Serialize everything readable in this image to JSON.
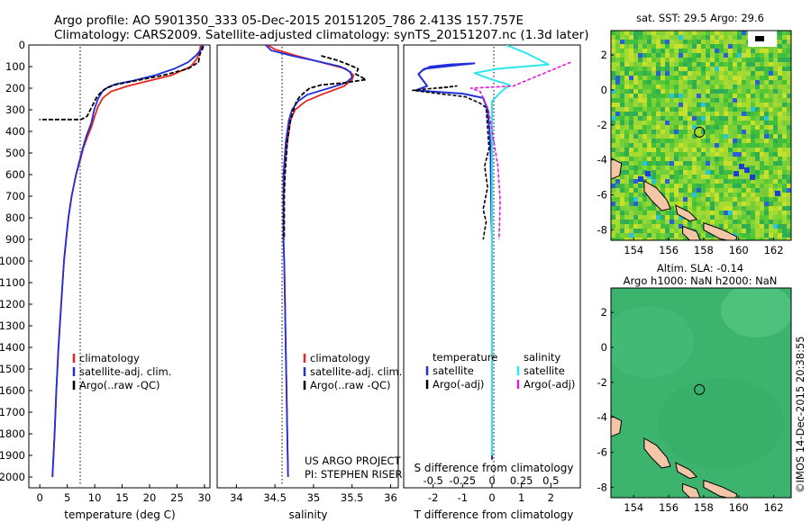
{
  "header": {
    "line1": "Argo profile: AO 5901350_333 05-Dec-2015 20151205_786 2.413S 157.757E",
    "line2": "Climatology: CARS2009. Satellite-adjusted climatology: synTS_20151207.nc (1.3d later)"
  },
  "credits": {
    "line1": "US ARGO PROJECT",
    "line2": "PI: STEPHEN RISER"
  },
  "stamp": "©IMOS 14-Dec-2015 20:38:55",
  "colors": {
    "climatology": "#e8251e",
    "satellite": "#1f2fdc",
    "argo": "#000000",
    "sal_satellite": "#2ee6f0",
    "sal_argo": "#e21ad6"
  },
  "depth_axis": {
    "ylim": [
      0,
      2050
    ],
    "ticks": [
      0,
      100,
      200,
      300,
      400,
      500,
      600,
      700,
      800,
      900,
      1000,
      1100,
      1200,
      1300,
      1400,
      1500,
      1600,
      1700,
      1800,
      1900,
      2000
    ],
    "tick_labels": [
      "0",
      "100",
      "200",
      "300",
      "400",
      "500",
      "600",
      "700",
      "800",
      "900",
      "1000",
      "1100",
      "1200",
      "1300",
      "1400",
      "1500",
      "1600",
      "1700",
      "1800",
      "1900",
      "2000"
    ]
  },
  "temp_panel": {
    "xlabel": "temperature (deg C)",
    "xlim": [
      -2,
      31
    ],
    "xticks": [
      0,
      5,
      10,
      15,
      20,
      25,
      30
    ],
    "xtick_labels": [
      "0",
      "5",
      "10",
      "15",
      "20",
      "25",
      "30"
    ],
    "legend": [
      "climatology",
      "satellite-adj. clim.",
      "Argo(..raw -QC)"
    ]
  },
  "sal_panel": {
    "xlabel": "salinity",
    "xlim": [
      33.75,
      36.1
    ],
    "xticks": [
      34,
      34.5,
      35,
      35.5,
      36
    ],
    "xtick_labels": [
      "34",
      "34.5",
      "35",
      "35.5",
      "36"
    ],
    "legend": [
      "climatology",
      "satellite-adj. clim.",
      "Argo(..raw -QC)"
    ]
  },
  "diff_panel": {
    "xlabel_bottom": "T difference from climatology",
    "xlabel_top": "S difference from climatology",
    "t_xlim": [
      -3,
      3
    ],
    "t_ticks": [
      -2,
      -1,
      0,
      1,
      2
    ],
    "t_tick_labels": [
      "-2",
      "-1",
      "0",
      "1",
      "2"
    ],
    "s_ticks": [
      -0.5,
      -0.25,
      0,
      0.25,
      0.5
    ],
    "s_tick_labels": [
      "-0.5",
      "-0.25",
      "0",
      "0.25",
      "0.5"
    ],
    "legend_temp_title": "temperature",
    "legend_sal_title": "salinity",
    "legend_temp": [
      "satellite",
      "Argo(-adj)"
    ],
    "legend_sal": [
      "satellite",
      "Argo(-adj)"
    ]
  },
  "sst_map": {
    "title": "sat. SST: 29.5 Argo: 29.6",
    "xticks": [
      154,
      156,
      158,
      160,
      162
    ],
    "yticks": [
      2,
      0,
      -2,
      -4,
      -6,
      -8
    ],
    "xtick_labels": [
      "154",
      "156",
      "158",
      "160",
      "162"
    ],
    "ytick_labels": [
      "2",
      "0",
      "-2",
      "-4",
      "-6",
      "-8"
    ],
    "xlim": [
      152.7,
      163.0
    ],
    "ylim": [
      -8.6,
      3.4
    ],
    "marker": [
      157.757,
      -2.413
    ]
  },
  "sla_map": {
    "title1": "Altim. SLA: -0.14",
    "title2": "Argo h1000: NaN h2000: NaN",
    "xticks": [
      154,
      156,
      158,
      160,
      162
    ],
    "yticks": [
      2,
      0,
      -2,
      -4,
      -6,
      -8
    ],
    "xtick_labels": [
      "154",
      "156",
      "158",
      "160",
      "162"
    ],
    "ytick_labels": [
      "2",
      "0",
      "-2",
      "-4",
      "-6",
      "-8"
    ],
    "xlim": [
      152.7,
      163.0
    ],
    "ylim": [
      -8.6,
      3.4
    ],
    "marker": [
      157.757,
      -2.413
    ]
  },
  "chart_data": [
    {
      "type": "line",
      "title": "",
      "xlabel": "temperature (deg C)",
      "ylabel": "",
      "xlim": [
        -2,
        31
      ],
      "ylim": [
        0,
        2050
      ],
      "series": [
        {
          "name": "climatology",
          "points": [
            [
              29.3,
              0
            ],
            [
              29.2,
              20
            ],
            [
              28.7,
              60
            ],
            [
              27.5,
              100
            ],
            [
              24,
              140
            ],
            [
              20,
              165
            ],
            [
              16,
              190
            ],
            [
              13,
              215
            ],
            [
              11.5,
              245
            ],
            [
              10.6,
              285
            ],
            [
              10,
              330
            ],
            [
              9.4,
              380
            ],
            [
              8.6,
              430
            ],
            [
              7.9,
              480
            ],
            [
              7.3,
              540
            ],
            [
              6.6,
              600
            ],
            [
              5.8,
              700
            ],
            [
              5.2,
              800
            ],
            [
              4.8,
              900
            ],
            [
              4.4,
              1000
            ],
            [
              3.9,
              1200
            ],
            [
              3.4,
              1400
            ],
            [
              3.0,
              1600
            ],
            [
              2.7,
              1800
            ],
            [
              2.3,
              2000
            ]
          ]
        },
        {
          "name": "satellite-adj. clim.",
          "points": [
            [
              29.6,
              0
            ],
            [
              29.4,
              20
            ],
            [
              28.4,
              50
            ],
            [
              27,
              80
            ],
            [
              24.5,
              110
            ],
            [
              21,
              140
            ],
            [
              17,
              165
            ],
            [
              14,
              180
            ],
            [
              12.4,
              195
            ],
            [
              11.4,
              215
            ],
            [
              10.6,
              250
            ],
            [
              9.9,
              300
            ],
            [
              9.4,
              360
            ],
            [
              8.5,
              420
            ],
            [
              7.8,
              480
            ],
            [
              7.2,
              540
            ],
            [
              6.6,
              600
            ],
            [
              5.8,
              700
            ],
            [
              5.2,
              800
            ],
            [
              4.8,
              900
            ],
            [
              4.4,
              1000
            ],
            [
              3.9,
              1200
            ],
            [
              3.4,
              1400
            ],
            [
              3.0,
              1600
            ],
            [
              2.7,
              1800
            ],
            [
              2.3,
              2000
            ]
          ]
        },
        {
          "name": "Argo(..raw -QC)",
          "points": [
            [
              29.8,
              5
            ],
            [
              29.6,
              20
            ],
            [
              29.2,
              40
            ],
            [
              28.9,
              80
            ],
            [
              27,
              110
            ],
            [
              22.5,
              140
            ],
            [
              17.5,
              165
            ],
            [
              13.5,
              185
            ],
            [
              11.8,
              205
            ],
            [
              10.9,
              225
            ],
            [
              10.3,
              245
            ],
            [
              9.8,
              270
            ],
            [
              9.2,
              300
            ],
            [
              8.6,
              330
            ],
            [
              7.5,
              345
            ],
            [
              -0.1,
              345
            ]
          ]
        }
      ]
    },
    {
      "type": "line",
      "title": "",
      "xlabel": "salinity",
      "ylabel": "",
      "xlim": [
        33.75,
        36.1
      ],
      "ylim": [
        0,
        2050
      ],
      "series": [
        {
          "name": "climatology",
          "points": [
            [
              34.4,
              0
            ],
            [
              34.5,
              20
            ],
            [
              34.78,
              50
            ],
            [
              35.1,
              80
            ],
            [
              35.42,
              110
            ],
            [
              35.52,
              140
            ],
            [
              35.5,
              160
            ],
            [
              35.4,
              190
            ],
            [
              35.1,
              230
            ],
            [
              34.9,
              260
            ],
            [
              34.76,
              300
            ],
            [
              34.7,
              350
            ],
            [
              34.68,
              400
            ],
            [
              34.66,
              450
            ],
            [
              34.64,
              500
            ],
            [
              34.63,
              550
            ],
            [
              34.62,
              600
            ],
            [
              34.61,
              700
            ],
            [
              34.61,
              800
            ],
            [
              34.61,
              900
            ],
            [
              34.62,
              1000
            ],
            [
              34.63,
              1200
            ],
            [
              34.64,
              1400
            ],
            [
              34.65,
              1600
            ],
            [
              34.66,
              1800
            ],
            [
              34.67,
              2000
            ]
          ]
        },
        {
          "name": "satellite-adj. clim.",
          "points": [
            [
              34.38,
              0
            ],
            [
              34.45,
              25
            ],
            [
              34.72,
              50
            ],
            [
              35.05,
              75
            ],
            [
              35.35,
              100
            ],
            [
              35.48,
              125
            ],
            [
              35.5,
              150
            ],
            [
              35.42,
              175
            ],
            [
              35.2,
              200
            ],
            [
              34.92,
              230
            ],
            [
              34.8,
              260
            ],
            [
              34.72,
              300
            ],
            [
              34.68,
              350
            ],
            [
              34.66,
              400
            ],
            [
              34.64,
              450
            ],
            [
              34.63,
              500
            ],
            [
              34.62,
              550
            ],
            [
              34.61,
              600
            ],
            [
              34.61,
              700
            ],
            [
              34.61,
              800
            ],
            [
              34.61,
              900
            ],
            [
              34.62,
              1000
            ],
            [
              34.63,
              1200
            ],
            [
              34.64,
              1400
            ],
            [
              34.65,
              1600
            ],
            [
              34.66,
              1800
            ],
            [
              34.67,
              2000
            ]
          ]
        },
        {
          "name": "Argo(..raw -QC)",
          "points": [
            [
              35.1,
              50
            ],
            [
              35.3,
              70
            ],
            [
              35.45,
              90
            ],
            [
              35.58,
              110
            ],
            [
              35.55,
              135
            ],
            [
              35.68,
              160
            ],
            [
              35.4,
              175
            ],
            [
              35.1,
              185
            ],
            [
              34.95,
              200
            ],
            [
              34.88,
              220
            ],
            [
              34.82,
              240
            ],
            [
              34.78,
              260
            ],
            [
              34.74,
              300
            ],
            [
              34.7,
              350
            ],
            [
              34.68,
              400
            ],
            [
              34.66,
              450
            ],
            [
              34.65,
              500
            ],
            [
              34.64,
              550
            ],
            [
              34.63,
              600
            ],
            [
              34.62,
              700
            ],
            [
              34.62,
              800
            ],
            [
              34.62,
              900
            ]
          ]
        }
      ]
    },
    {
      "type": "line",
      "title": "",
      "xlabel": "T difference from climatology",
      "ylabel": "",
      "xlim": [
        -3,
        3
      ],
      "ylim": [
        0,
        2050
      ],
      "series": [
        {
          "name": "satellite",
          "points": [
            [
              -2.4,
              120
            ],
            [
              -2.1,
              100
            ],
            [
              -1.4,
              90
            ],
            [
              -0.6,
              85
            ],
            [
              -2.3,
              110
            ],
            [
              -2.5,
              135
            ],
            [
              -2.2,
              190
            ],
            [
              -2.6,
              210
            ],
            [
              -1.0,
              225
            ],
            [
              -0.3,
              245
            ],
            [
              -0.15,
              300
            ],
            [
              -0.08,
              400
            ],
            [
              -0.05,
              500
            ],
            [
              -0.04,
              600
            ],
            [
              -0.03,
              700
            ],
            [
              -0.02,
              800
            ],
            [
              0.0,
              900
            ],
            [
              0.0,
              1200
            ],
            [
              0.0,
              1600
            ],
            [
              0.0,
              1920
            ]
          ]
        },
        {
          "name": "Argo(-adj)",
          "points": [
            [
              -1.8,
              200
            ],
            [
              -1.2,
              190
            ],
            [
              -2.7,
              210
            ],
            [
              -0.9,
              240
            ],
            [
              -0.4,
              270
            ],
            [
              -0.2,
              290
            ],
            [
              -0.1,
              480
            ],
            [
              -0.25,
              560
            ],
            [
              -0.15,
              660
            ],
            [
              -0.3,
              760
            ],
            [
              -0.2,
              820
            ],
            [
              -0.3,
              900
            ]
          ]
        }
      ]
    },
    {
      "type": "line",
      "title": "",
      "xlabel": "S difference from climatology",
      "ylabel": "",
      "xlim": [
        -0.75,
        0.75
      ],
      "ylim": [
        0,
        2050
      ],
      "series": [
        {
          "name": "satellite",
          "points": [
            [
              0.12,
              0
            ],
            [
              0.3,
              40
            ],
            [
              0.48,
              90
            ],
            [
              0.05,
              110
            ],
            [
              -0.15,
              130
            ],
            [
              0.0,
              160
            ],
            [
              0.15,
              185
            ],
            [
              0.08,
              215
            ],
            [
              0.0,
              260
            ],
            [
              0.0,
              320
            ],
            [
              0.0,
              400
            ],
            [
              0.0,
              600
            ],
            [
              0.0,
              900
            ],
            [
              0.0,
              1200
            ],
            [
              0.0,
              1600
            ],
            [
              0.0,
              1900
            ]
          ]
        },
        {
          "name": "Argo(-adj)",
          "points": [
            [
              0.67,
              80
            ],
            [
              0.6,
              95
            ],
            [
              0.18,
              190
            ],
            [
              -0.18,
              200
            ],
            [
              -0.1,
              215
            ],
            [
              -0.03,
              300
            ],
            [
              0.05,
              560
            ],
            [
              0.07,
              720
            ],
            [
              0.06,
              900
            ]
          ]
        }
      ]
    }
  ]
}
